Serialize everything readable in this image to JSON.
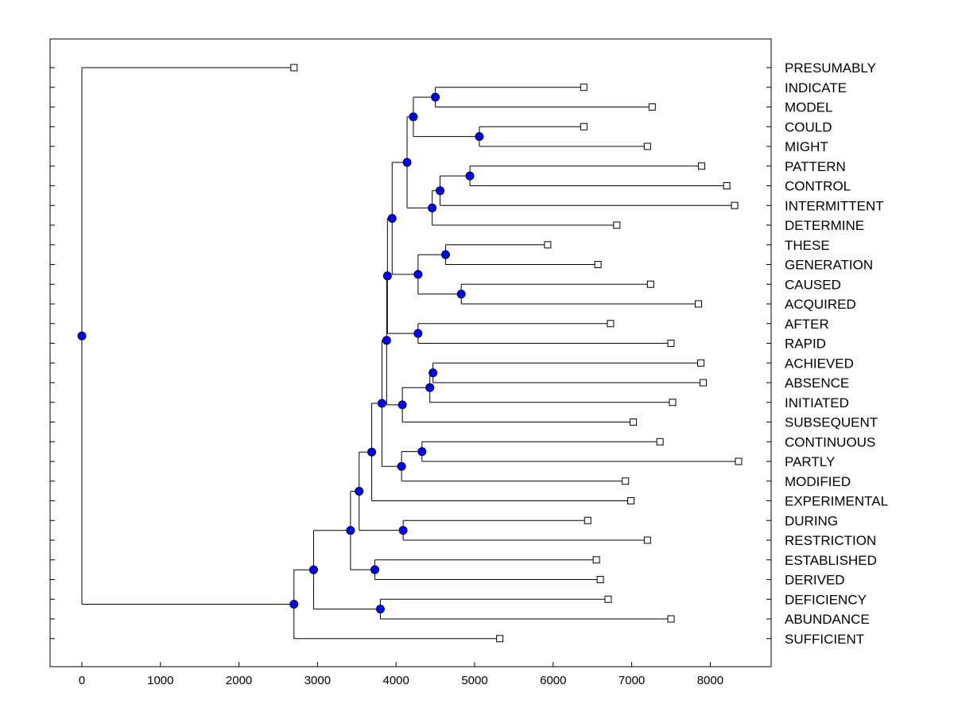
{
  "chart_data": {
    "type": "dendrogram",
    "title": "",
    "xlabel": "",
    "ylabel": "",
    "x_range": [
      -400,
      8800
    ],
    "x_ticks": [
      0,
      1000,
      2000,
      3000,
      4000,
      5000,
      6000,
      7000,
      8000
    ],
    "leaves": [
      {
        "label": "PRESUMABLY",
        "x": 2700
      },
      {
        "label": "INDICATE",
        "x": 6390
      },
      {
        "label": "MODEL",
        "x": 7260
      },
      {
        "label": "COULD",
        "x": 6390
      },
      {
        "label": "MIGHT",
        "x": 7200
      },
      {
        "label": "PATTERN",
        "x": 7890
      },
      {
        "label": "CONTROL",
        "x": 8210
      },
      {
        "label": "INTERMITTENT",
        "x": 8310
      },
      {
        "label": "DETERMINE",
        "x": 6810
      },
      {
        "label": "THESE",
        "x": 5930
      },
      {
        "label": "GENERATION",
        "x": 6570
      },
      {
        "label": "CAUSED",
        "x": 7240
      },
      {
        "label": "ACQUIRED",
        "x": 7850
      },
      {
        "label": "AFTER",
        "x": 6730
      },
      {
        "label": "RAPID",
        "x": 7500
      },
      {
        "label": "ACHIEVED",
        "x": 7880
      },
      {
        "label": "ABSENCE",
        "x": 7910
      },
      {
        "label": "INITIATED",
        "x": 7520
      },
      {
        "label": "SUBSEQUENT",
        "x": 7020
      },
      {
        "label": "CONTINUOUS",
        "x": 7360
      },
      {
        "label": "PARTLY",
        "x": 8360
      },
      {
        "label": "MODIFIED",
        "x": 6920
      },
      {
        "label": "EXPERIMENTAL",
        "x": 6990
      },
      {
        "label": "DURING",
        "x": 6440
      },
      {
        "label": "RESTRICTION",
        "x": 7200
      },
      {
        "label": "ESTABLISHED",
        "x": 6550
      },
      {
        "label": "DERIVED",
        "x": 6600
      },
      {
        "label": "DEFICIENCY",
        "x": 6700
      },
      {
        "label": "ABUNDANCE",
        "x": 7500
      },
      {
        "label": "SUFFICIENT",
        "x": 5320
      }
    ],
    "merges": [
      {
        "id": "n1",
        "x": 4500,
        "children": [
          "INDICATE",
          "MODEL"
        ]
      },
      {
        "id": "n2",
        "x": 5060,
        "children": [
          "COULD",
          "MIGHT"
        ]
      },
      {
        "id": "n3",
        "x": 4220,
        "children": [
          "n1",
          "n2"
        ]
      },
      {
        "id": "n4",
        "x": 4940,
        "children": [
          "PATTERN",
          "CONTROL"
        ]
      },
      {
        "id": "n5",
        "x": 4560,
        "children": [
          "n4",
          "INTERMITTENT"
        ]
      },
      {
        "id": "n6",
        "x": 4460,
        "children": [
          "n5",
          "DETERMINE"
        ]
      },
      {
        "id": "n7",
        "x": 4140,
        "children": [
          "n3",
          "n6"
        ]
      },
      {
        "id": "n8",
        "x": 4630,
        "children": [
          "THESE",
          "GENERATION"
        ]
      },
      {
        "id": "n9",
        "x": 4830,
        "children": [
          "CAUSED",
          "ACQUIRED"
        ]
      },
      {
        "id": "n10",
        "x": 4280,
        "children": [
          "n8",
          "n9"
        ]
      },
      {
        "id": "n11",
        "x": 3950,
        "children": [
          "n7",
          "n10"
        ]
      },
      {
        "id": "n12",
        "x": 4280,
        "children": [
          "AFTER",
          "RAPID"
        ]
      },
      {
        "id": "n13",
        "x": 3890,
        "children": [
          "n11",
          "n12"
        ]
      },
      {
        "id": "n14",
        "x": 4470,
        "children": [
          "ACHIEVED",
          "ABSENCE"
        ]
      },
      {
        "id": "n15",
        "x": 4430,
        "children": [
          "n14",
          "INITIATED"
        ]
      },
      {
        "id": "n16",
        "x": 4080,
        "children": [
          "n15",
          "SUBSEQUENT"
        ]
      },
      {
        "id": "n17",
        "x": 3880,
        "children": [
          "n13",
          "n16"
        ]
      },
      {
        "id": "n18",
        "x": 4330,
        "children": [
          "CONTINUOUS",
          "PARTLY"
        ]
      },
      {
        "id": "n19",
        "x": 4070,
        "children": [
          "n18",
          "MODIFIED"
        ]
      },
      {
        "id": "n20",
        "x": 3820,
        "children": [
          "n17",
          "n19"
        ]
      },
      {
        "id": "n21",
        "x": 3690,
        "children": [
          "n20",
          "EXPERIMENTAL"
        ]
      },
      {
        "id": "n22",
        "x": 4090,
        "children": [
          "DURING",
          "RESTRICTION"
        ]
      },
      {
        "id": "n23",
        "x": 3530,
        "children": [
          "n21",
          "n22"
        ]
      },
      {
        "id": "n24",
        "x": 3730,
        "children": [
          "ESTABLISHED",
          "DERIVED"
        ]
      },
      {
        "id": "n25",
        "x": 3420,
        "children": [
          "n23",
          "n24"
        ]
      },
      {
        "id": "n26",
        "x": 3800,
        "children": [
          "DEFICIENCY",
          "ABUNDANCE"
        ]
      },
      {
        "id": "n27",
        "x": 2950,
        "children": [
          "n25",
          "n26"
        ]
      },
      {
        "id": "n28",
        "x": 2700,
        "children": [
          "n27",
          "SUFFICIENT"
        ]
      },
      {
        "id": "n29",
        "x": 0,
        "children": [
          "PRESUMABLY",
          "n28"
        ]
      }
    ],
    "colors": {
      "node_fill": "#0000ff",
      "node_stroke": "#000033",
      "leaf_fill": "#ffffff",
      "line": "#000000"
    }
  }
}
